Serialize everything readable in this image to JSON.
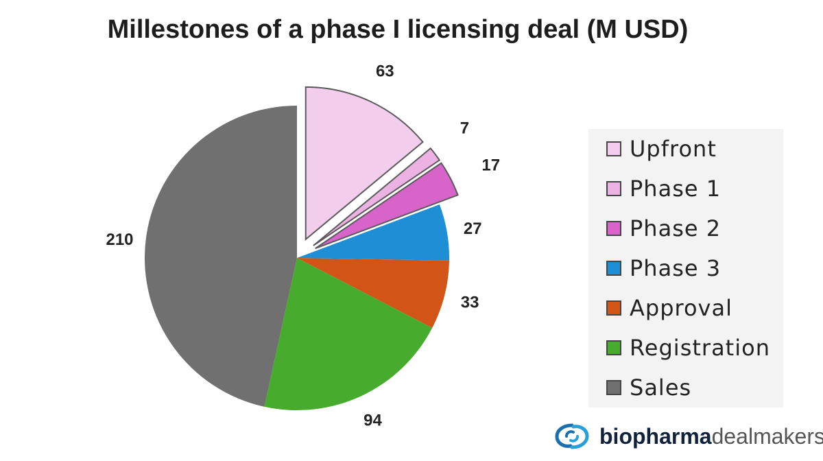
{
  "chart_data": {
    "type": "pie",
    "title": "Millestones of a phase I licensing deal (M USD)",
    "categories": [
      "Upfront",
      "Phase 1",
      "Phase 2",
      "Phase 3",
      "Approval",
      "Registration",
      "Sales"
    ],
    "values": [
      63,
      7,
      17,
      27,
      33,
      94,
      210
    ],
    "colors": [
      "#f2cdec",
      "#ecb2e3",
      "#d764c9",
      "#1e8fd4",
      "#d25417",
      "#47ac2e",
      "#707070"
    ],
    "exploded": [
      "Upfront",
      "Phase 1",
      "Phase 2"
    ],
    "legend_position": "right"
  },
  "brand": {
    "bold": "biopharma",
    "light": "dealmakers"
  }
}
